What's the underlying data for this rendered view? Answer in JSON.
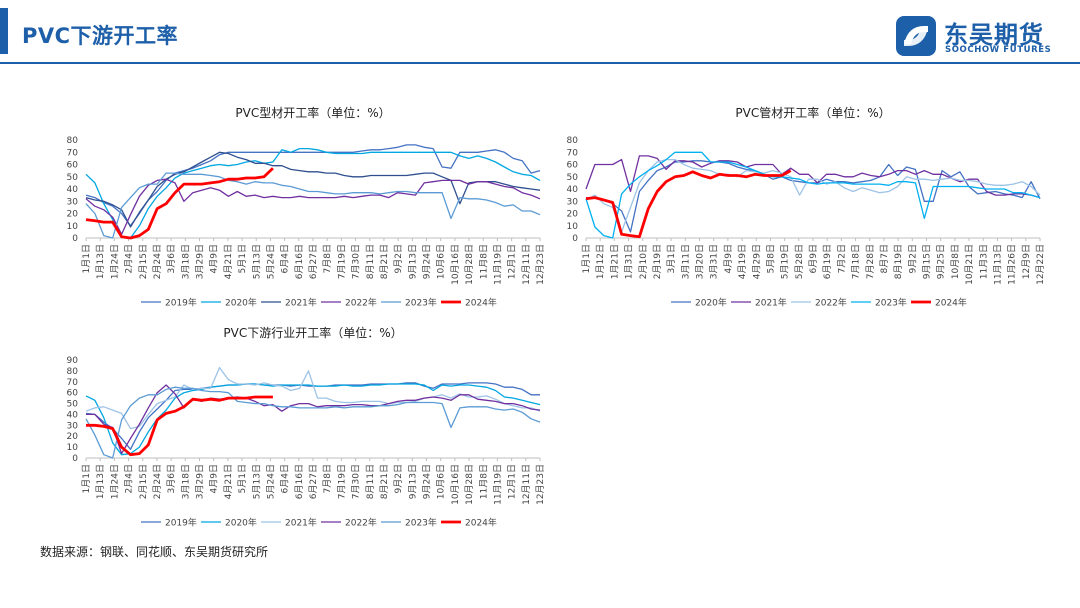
{
  "slide": {
    "title": "PVC下游开工率",
    "logo_cn": "东吴期货",
    "logo_en": "SOOCHOW FUTURES",
    "source": "数据来源：钢联、同花顺、东吴期货研究所",
    "accent_color": "#1d5fa8"
  },
  "chart_data": [
    {
      "id": "profile",
      "type": "line",
      "title": "PVC型材开工率（单位：%）",
      "ylim": [
        0,
        80
      ],
      "yticks": [
        0,
        10,
        20,
        30,
        40,
        50,
        60,
        70,
        80
      ],
      "xlabels": [
        "1月1日",
        "1月13日",
        "1月24日",
        "2月4日",
        "2月15日",
        "2月24日",
        "3月6日",
        "3月18日",
        "3月29日",
        "4月9日",
        "4月21日",
        "5月1日",
        "5月13日",
        "5月24日",
        "6月4日",
        "6月16日",
        "6月27日",
        "7月8日",
        "7月19日",
        "7月30日",
        "8月11日",
        "8月21日",
        "9月2日",
        "9月13日",
        "9月24日",
        "10月6日",
        "10月16日",
        "10月28日",
        "11月8日",
        "11月19日",
        "12月1日",
        "12月11日",
        "12月23日"
      ],
      "n_points": 52,
      "legend": "bottom",
      "grid": false,
      "series": [
        {
          "name": "2019年",
          "color": "#4472c4",
          "width": 1.3,
          "values": [
            35,
            33,
            29,
            26,
            20,
            10,
            20,
            31,
            38,
            47,
            53,
            55,
            57,
            60,
            63,
            68,
            70,
            70,
            70,
            70,
            70,
            70,
            70,
            70,
            70,
            70,
            70,
            70,
            70,
            70,
            70,
            71,
            72,
            72,
            73,
            74,
            76,
            76,
            74,
            73,
            58,
            57,
            70,
            70,
            70,
            71,
            72,
            70,
            65,
            63,
            53,
            55
          ]
        },
        {
          "name": "2020年",
          "color": "#00a7e1",
          "width": 1.3,
          "values": [
            52,
            45,
            28,
            15,
            1,
            0,
            10,
            24,
            34,
            41,
            49,
            53,
            55,
            57,
            59,
            60,
            59,
            60,
            62,
            63,
            61,
            62,
            72,
            70,
            73,
            73,
            72,
            70,
            69,
            69,
            69,
            69,
            70,
            70,
            70,
            70,
            70,
            70,
            70,
            70,
            70,
            70,
            67,
            65,
            67,
            65,
            62,
            58,
            54,
            52,
            51,
            47
          ]
        },
        {
          "name": "2021年",
          "color": "#2f4f8f",
          "width": 1.3,
          "values": [
            33,
            31,
            30,
            27,
            23,
            9,
            21,
            31,
            42,
            48,
            52,
            54,
            58,
            62,
            66,
            70,
            69,
            66,
            64,
            61,
            61,
            59,
            59,
            56,
            55,
            54,
            54,
            53,
            53,
            51,
            50,
            50,
            51,
            51,
            51,
            51,
            51,
            52,
            53,
            53,
            50,
            47,
            28,
            45,
            46,
            46,
            46,
            44,
            42,
            41,
            40,
            39
          ]
        },
        {
          "name": "2022年",
          "color": "#7030a0",
          "width": 1.3,
          "values": [
            32,
            26,
            23,
            17,
            3,
            19,
            34,
            43,
            47,
            48,
            45,
            30,
            37,
            39,
            41,
            39,
            34,
            38,
            34,
            35,
            33,
            34,
            33,
            33,
            34,
            33,
            33,
            33,
            33,
            34,
            33,
            34,
            35,
            35,
            33,
            37,
            36,
            35,
            45,
            46,
            47,
            47,
            47,
            44,
            46,
            46,
            44,
            42,
            41,
            37,
            35,
            32
          ]
        },
        {
          "name": "2023年",
          "color": "#5b9bd5",
          "width": 1.3,
          "values": [
            28,
            20,
            2,
            0,
            25,
            33,
            41,
            44,
            44,
            53,
            53,
            52,
            52,
            52,
            51,
            50,
            47,
            46,
            44,
            46,
            45,
            45,
            43,
            42,
            40,
            38,
            38,
            37,
            36,
            36,
            37,
            37,
            37,
            36,
            37,
            38,
            38,
            37,
            37,
            37,
            37,
            16,
            33,
            32,
            32,
            31,
            29,
            26,
            27,
            22,
            22,
            19
          ]
        },
        {
          "name": "2024年",
          "color": "#ff0000",
          "width": 2.8,
          "values": [
            15,
            14,
            13,
            13,
            1,
            0,
            2,
            7,
            24,
            28,
            37,
            44,
            44,
            44,
            45,
            46,
            48,
            48,
            49,
            49,
            50,
            57
          ]
        }
      ]
    },
    {
      "id": "pipe",
      "type": "line",
      "title": "PVC管材开工率（单位：%）",
      "ylim": [
        0,
        80
      ],
      "yticks": [
        0,
        10,
        20,
        30,
        40,
        50,
        60,
        70,
        80
      ],
      "xlabels": [
        "1月1日",
        "1月12日",
        "1月21日",
        "1月31日",
        "2月10日",
        "2月19日",
        "3月1日",
        "3月11日",
        "3月20日",
        "3月31日",
        "4月9日",
        "4月19日",
        "4月29日",
        "5月8日",
        "5月19日",
        "5月28日",
        "6月9日",
        "6月19日",
        "7月2日",
        "7月18日",
        "7月28日",
        "8月7日",
        "8月19日",
        "9月2日",
        "9月15日",
        "9月25日",
        "10月8日",
        "10月21日",
        "11月3日",
        "11月13日",
        "11月26日",
        "12月9日",
        "12月22日"
      ],
      "n_points": 52,
      "legend": "bottom",
      "grid": false,
      "series": [
        {
          "name": "2020年",
          "color": "#4472c4",
          "width": 1.3,
          "values": [
            33,
            33,
            31,
            28,
            22,
            5,
            38,
            47,
            55,
            58,
            62,
            62,
            63,
            63,
            62,
            62,
            61,
            58,
            56,
            55,
            52,
            48,
            50,
            47,
            46,
            45,
            45,
            48,
            46,
            46,
            45,
            46,
            47,
            50,
            60,
            51,
            58,
            56,
            30,
            30,
            55,
            50,
            54,
            42,
            36,
            37,
            38,
            36,
            35,
            33,
            46,
            32
          ]
        },
        {
          "name": "2021年",
          "color": "#7030a0",
          "width": 1.3,
          "values": [
            40,
            60,
            60,
            60,
            64,
            38,
            67,
            67,
            65,
            56,
            63,
            63,
            62,
            58,
            61,
            63,
            63,
            62,
            58,
            60,
            60,
            60,
            52,
            57,
            52,
            52,
            45,
            52,
            52,
            50,
            50,
            53,
            51,
            50,
            52,
            55,
            55,
            52,
            55,
            52,
            52,
            49,
            46,
            48,
            48,
            38,
            35,
            35,
            36,
            36,
            35,
            33
          ]
        },
        {
          "name": "2022年",
          "color": "#9dc3e6",
          "width": 1.3,
          "values": [
            31,
            35,
            28,
            25,
            5,
            25,
            45,
            55,
            62,
            64,
            64,
            60,
            57,
            56,
            55,
            52,
            52,
            50,
            55,
            54,
            53,
            55,
            53,
            50,
            35,
            48,
            48,
            44,
            46,
            41,
            38,
            41,
            39,
            37,
            38,
            42,
            50,
            48,
            48,
            47,
            48,
            49,
            47,
            47,
            46,
            44,
            43,
            43,
            44,
            46,
            42,
            35
          ]
        },
        {
          "name": "2023年",
          "color": "#00b0f0",
          "width": 1.3,
          "values": [
            32,
            9,
            2,
            0,
            36,
            44,
            50,
            55,
            59,
            64,
            70,
            70,
            70,
            70,
            62,
            62,
            62,
            60,
            58,
            55,
            52,
            50,
            50,
            49,
            48,
            45,
            44,
            45,
            45,
            45,
            44,
            44,
            44,
            44,
            43,
            46,
            46,
            45,
            16,
            42,
            42,
            42,
            42,
            42,
            41,
            40,
            40,
            40,
            37,
            37,
            35,
            33
          ]
        },
        {
          "name": "2024年",
          "color": "#ff0000",
          "width": 2.8,
          "values": [
            32,
            33,
            31,
            29,
            3,
            2,
            1,
            24,
            38,
            46,
            50,
            51,
            54,
            51,
            49,
            52,
            51,
            51,
            50,
            52,
            51,
            51,
            51,
            55
          ]
        }
      ]
    },
    {
      "id": "overall",
      "type": "line",
      "title": "PVC下游行业开工率（单位：%）",
      "ylim": [
        0,
        90
      ],
      "yticks": [
        0,
        10,
        20,
        30,
        40,
        50,
        60,
        70,
        80,
        90
      ],
      "xlabels": [
        "1月1日",
        "1月13日",
        "1月24日",
        "2月4日",
        "2月15日",
        "2月24日",
        "3月6日",
        "3月18日",
        "3月29日",
        "4月9日",
        "4月21日",
        "5月1日",
        "5月13日",
        "5月24日",
        "6月4日",
        "6月16日",
        "6月27日",
        "7月8日",
        "7月19日",
        "7月30日",
        "8月11日",
        "8月21日",
        "9月2日",
        "9月13日",
        "9月24日",
        "10月6日",
        "10月16日",
        "10月28日",
        "11月8日",
        "11月19日",
        "12月1日",
        "12月11日",
        "12月23日"
      ],
      "n_points": 52,
      "legend": "bottom",
      "grid": false,
      "series": [
        {
          "name": "2019年",
          "color": "#4472c4",
          "width": 1.3,
          "values": [
            41,
            40,
            33,
            27,
            18,
            8,
            24,
            37,
            45,
            53,
            62,
            63,
            63,
            64,
            65,
            66,
            67,
            67,
            68,
            68,
            67,
            67,
            67,
            66,
            67,
            66,
            66,
            66,
            67,
            67,
            67,
            67,
            68,
            68,
            68,
            68,
            69,
            69,
            66,
            64,
            68,
            68,
            68,
            69,
            69,
            69,
            68,
            65,
            65,
            63,
            58,
            58
          ]
        },
        {
          "name": "2020年",
          "color": "#00a7e1",
          "width": 1.3,
          "values": [
            57,
            53,
            37,
            14,
            3,
            4,
            10,
            24,
            36,
            44,
            55,
            60,
            62,
            63,
            65,
            66,
            67,
            67,
            68,
            68,
            67,
            66,
            67,
            67,
            67,
            67,
            66,
            66,
            66,
            67,
            66,
            66,
            67,
            67,
            68,
            68,
            68,
            68,
            67,
            62,
            67,
            66,
            67,
            67,
            66,
            65,
            62,
            56,
            55,
            53,
            51,
            49
          ]
        },
        {
          "name": "2021年",
          "color": "#9dc3e6",
          "width": 1.3,
          "values": [
            43,
            46,
            47,
            44,
            41,
            27,
            29,
            40,
            50,
            53,
            56,
            67,
            63,
            64,
            64,
            83,
            72,
            68,
            68,
            67,
            69,
            67,
            66,
            62,
            64,
            80,
            55,
            55,
            52,
            51,
            51,
            52,
            52,
            52,
            50,
            51,
            51,
            52,
            55,
            56,
            58,
            55,
            59,
            56,
            56,
            57,
            54,
            50,
            48,
            46,
            46,
            43
          ]
        },
        {
          "name": "2022年",
          "color": "#7030a0",
          "width": 1.3,
          "values": [
            40,
            40,
            31,
            28,
            4,
            18,
            31,
            46,
            60,
            67,
            59,
            46,
            54,
            52,
            55,
            54,
            55,
            56,
            55,
            52,
            48,
            49,
            43,
            48,
            50,
            50,
            47,
            48,
            48,
            48,
            49,
            49,
            48,
            48,
            50,
            52,
            53,
            53,
            55,
            56,
            55,
            53,
            58,
            58,
            54,
            53,
            52,
            50,
            50,
            48,
            45,
            44
          ]
        },
        {
          "name": "2023年",
          "color": "#5b9bd5",
          "width": 1.3,
          "values": [
            36,
            21,
            3,
            0,
            35,
            48,
            55,
            58,
            58,
            63,
            65,
            64,
            64,
            62,
            61,
            61,
            60,
            52,
            51,
            50,
            50,
            48,
            47,
            47,
            46,
            46,
            46,
            46,
            47,
            46,
            47,
            47,
            47,
            48,
            48,
            49,
            51,
            51,
            51,
            51,
            50,
            28,
            46,
            47,
            47,
            47,
            45,
            44,
            45,
            42,
            36,
            33
          ]
        },
        {
          "name": "2024年",
          "color": "#ff0000",
          "width": 2.8,
          "values": [
            30,
            30,
            29,
            27,
            10,
            3,
            4,
            12,
            35,
            41,
            43,
            47,
            54,
            53,
            54,
            53,
            55,
            55,
            55,
            56,
            56,
            56
          ]
        }
      ]
    }
  ]
}
